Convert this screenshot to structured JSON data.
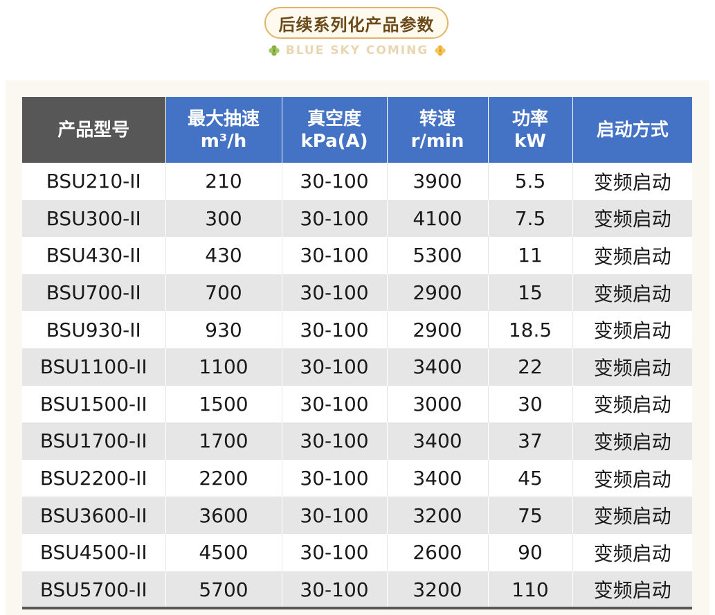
{
  "header": {
    "title": "后续系列化产品参数",
    "subtitle": "BLUE SKY COMING",
    "accent_color": "#e2b56a",
    "icons": [
      "clover-icon",
      "clover-icon"
    ]
  },
  "table": {
    "header_color": "#4472c4",
    "first_header_color": "#575757",
    "columns": [
      {
        "line1": "产品型号",
        "line2": ""
      },
      {
        "line1": "最大抽速",
        "line2": "m³/h"
      },
      {
        "line1": "真空度",
        "line2": "kPa(A)"
      },
      {
        "line1": "转速",
        "line2": "r/min"
      },
      {
        "line1": "功率",
        "line2": "kW"
      },
      {
        "line1": "启动方式",
        "line2": ""
      }
    ],
    "rows": [
      [
        "BSU210-II",
        "210",
        "30-100",
        "3900",
        "5.5",
        "变频启动"
      ],
      [
        "BSU300-II",
        "300",
        "30-100",
        "4100",
        "7.5",
        "变频启动"
      ],
      [
        "BSU430-II",
        "430",
        "30-100",
        "5300",
        "11",
        "变频启动"
      ],
      [
        "BSU700-II",
        "700",
        "30-100",
        "2900",
        "15",
        "变频启动"
      ],
      [
        "BSU930-II",
        "930",
        "30-100",
        "2900",
        "18.5",
        "变频启动"
      ],
      [
        "BSU1100-II",
        "1100",
        "30-100",
        "3400",
        "22",
        "变频启动"
      ],
      [
        "BSU1500-II",
        "1500",
        "30-100",
        "3000",
        "30",
        "变频启动"
      ],
      [
        "BSU1700-II",
        "1700",
        "30-100",
        "3400",
        "37",
        "变频启动"
      ],
      [
        "BSU2200-II",
        "2200",
        "30-100",
        "3400",
        "45",
        "变频启动"
      ],
      [
        "BSU3600-II",
        "3600",
        "30-100",
        "3200",
        "75",
        "变频启动"
      ],
      [
        "BSU4500-II",
        "4500",
        "30-100",
        "2600",
        "90",
        "变频启动"
      ],
      [
        "BSU5700-II",
        "5700",
        "30-100",
        "3200",
        "110",
        "变频启动"
      ]
    ]
  }
}
